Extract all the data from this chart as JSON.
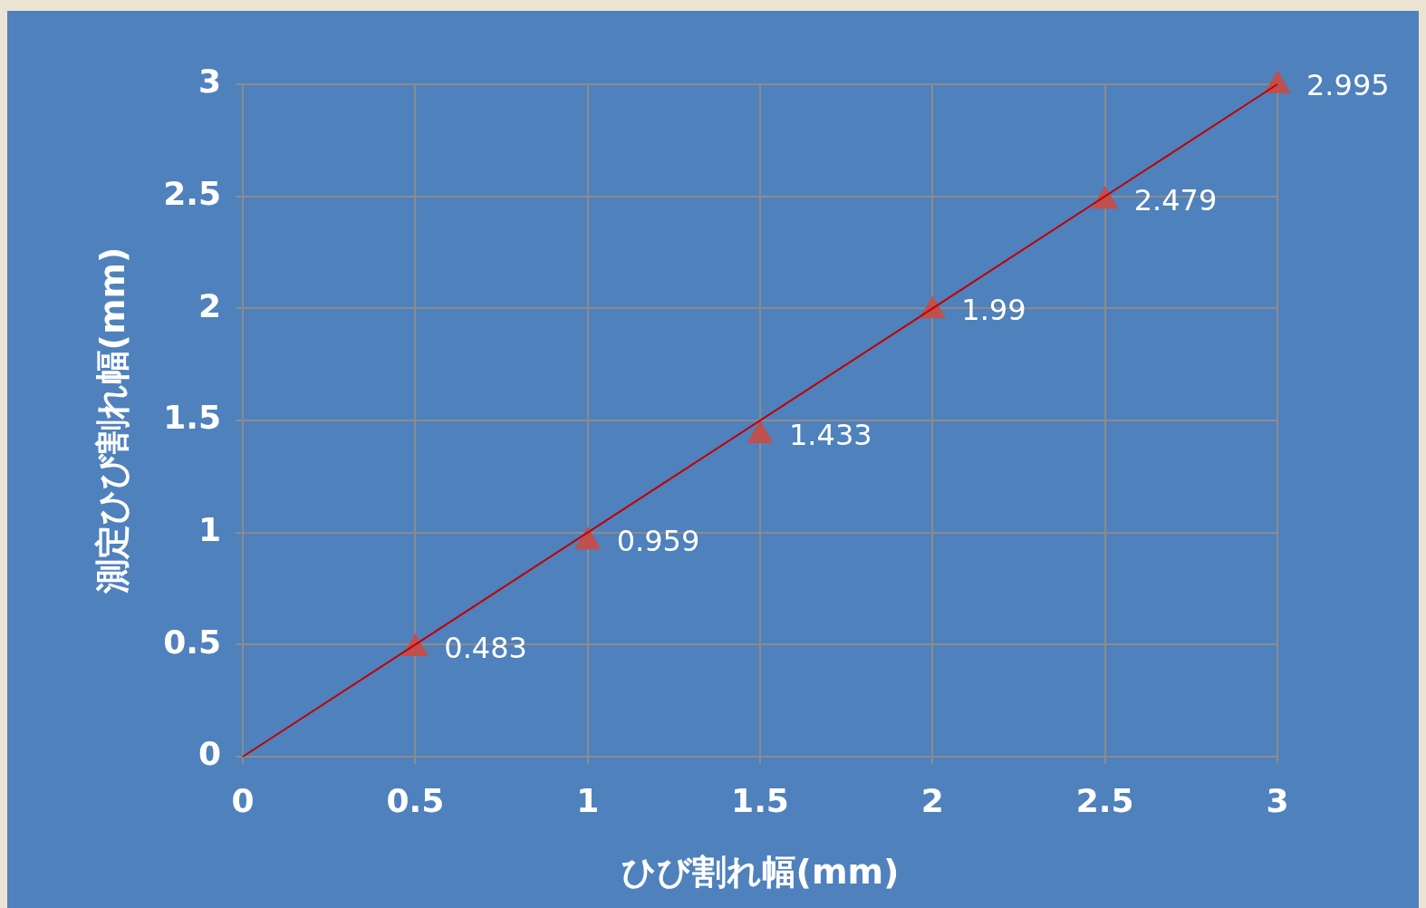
{
  "chart_data": {
    "type": "scatter",
    "xlabel": "ひび割れ幅(mm)",
    "ylabel": "測定ひび割れ幅(mm)",
    "xlim": [
      0,
      3
    ],
    "xticks": [
      0,
      0.5,
      1,
      1.5,
      2,
      2.5,
      3
    ],
    "ylim": [
      0,
      3
    ],
    "yticks": [
      0,
      0.5,
      1,
      1.5,
      2,
      2.5,
      3
    ],
    "grid": true,
    "series": [
      {
        "type": "line",
        "x": [
          0,
          3
        ],
        "values": [
          0,
          3
        ],
        "color": "#c00000",
        "marker": "none",
        "line_style": "solid"
      },
      {
        "x": [
          0.5,
          1,
          1.5,
          2,
          2.5,
          3
        ],
        "values": [
          0.483,
          0.959,
          1.433,
          1.99,
          2.479,
          2.995
        ],
        "color": "#c0504d",
        "marker": "triangle",
        "value_labels": [
          "0.483",
          "0.959",
          "1.433",
          "1.99",
          "2.479",
          "2.995"
        ]
      }
    ]
  }
}
